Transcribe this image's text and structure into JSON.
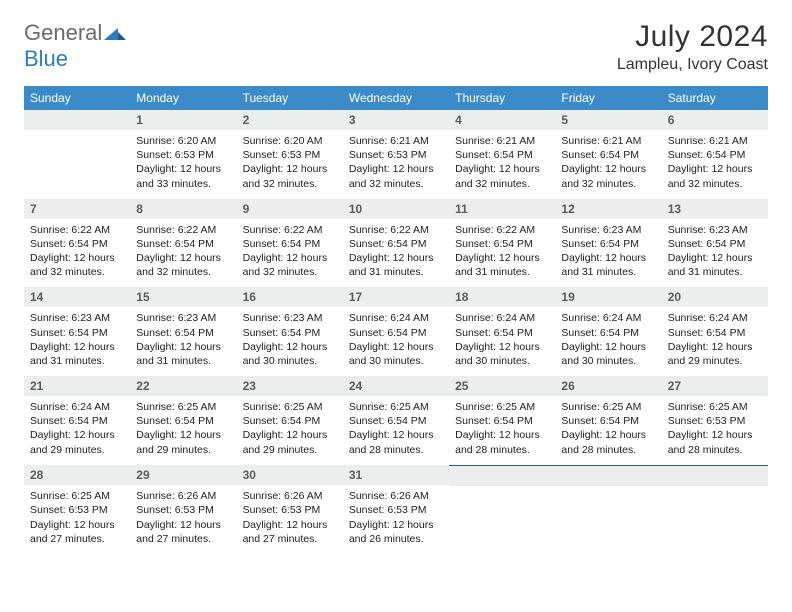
{
  "logo": {
    "text_general": "General",
    "text_blue": "Blue",
    "mark_color": "#2f7bbf"
  },
  "title": "July 2024",
  "location": "Lampleu, Ivory Coast",
  "header_bg": "#3b8bc9",
  "header_text_color": "#ffffff",
  "dayheader_bg": "#eceded",
  "border_color": "#2a5b8a",
  "weekdays": [
    "Sunday",
    "Monday",
    "Tuesday",
    "Wednesday",
    "Thursday",
    "Friday",
    "Saturday"
  ],
  "weeks": [
    [
      null,
      {
        "n": "1",
        "sunrise": "Sunrise: 6:20 AM",
        "sunset": "Sunset: 6:53 PM",
        "daylight": "Daylight: 12 hours and 33 minutes."
      },
      {
        "n": "2",
        "sunrise": "Sunrise: 6:20 AM",
        "sunset": "Sunset: 6:53 PM",
        "daylight": "Daylight: 12 hours and 32 minutes."
      },
      {
        "n": "3",
        "sunrise": "Sunrise: 6:21 AM",
        "sunset": "Sunset: 6:53 PM",
        "daylight": "Daylight: 12 hours and 32 minutes."
      },
      {
        "n": "4",
        "sunrise": "Sunrise: 6:21 AM",
        "sunset": "Sunset: 6:54 PM",
        "daylight": "Daylight: 12 hours and 32 minutes."
      },
      {
        "n": "5",
        "sunrise": "Sunrise: 6:21 AM",
        "sunset": "Sunset: 6:54 PM",
        "daylight": "Daylight: 12 hours and 32 minutes."
      },
      {
        "n": "6",
        "sunrise": "Sunrise: 6:21 AM",
        "sunset": "Sunset: 6:54 PM",
        "daylight": "Daylight: 12 hours and 32 minutes."
      }
    ],
    [
      {
        "n": "7",
        "sunrise": "Sunrise: 6:22 AM",
        "sunset": "Sunset: 6:54 PM",
        "daylight": "Daylight: 12 hours and 32 minutes."
      },
      {
        "n": "8",
        "sunrise": "Sunrise: 6:22 AM",
        "sunset": "Sunset: 6:54 PM",
        "daylight": "Daylight: 12 hours and 32 minutes."
      },
      {
        "n": "9",
        "sunrise": "Sunrise: 6:22 AM",
        "sunset": "Sunset: 6:54 PM",
        "daylight": "Daylight: 12 hours and 32 minutes."
      },
      {
        "n": "10",
        "sunrise": "Sunrise: 6:22 AM",
        "sunset": "Sunset: 6:54 PM",
        "daylight": "Daylight: 12 hours and 31 minutes."
      },
      {
        "n": "11",
        "sunrise": "Sunrise: 6:22 AM",
        "sunset": "Sunset: 6:54 PM",
        "daylight": "Daylight: 12 hours and 31 minutes."
      },
      {
        "n": "12",
        "sunrise": "Sunrise: 6:23 AM",
        "sunset": "Sunset: 6:54 PM",
        "daylight": "Daylight: 12 hours and 31 minutes."
      },
      {
        "n": "13",
        "sunrise": "Sunrise: 6:23 AM",
        "sunset": "Sunset: 6:54 PM",
        "daylight": "Daylight: 12 hours and 31 minutes."
      }
    ],
    [
      {
        "n": "14",
        "sunrise": "Sunrise: 6:23 AM",
        "sunset": "Sunset: 6:54 PM",
        "daylight": "Daylight: 12 hours and 31 minutes."
      },
      {
        "n": "15",
        "sunrise": "Sunrise: 6:23 AM",
        "sunset": "Sunset: 6:54 PM",
        "daylight": "Daylight: 12 hours and 31 minutes."
      },
      {
        "n": "16",
        "sunrise": "Sunrise: 6:23 AM",
        "sunset": "Sunset: 6:54 PM",
        "daylight": "Daylight: 12 hours and 30 minutes."
      },
      {
        "n": "17",
        "sunrise": "Sunrise: 6:24 AM",
        "sunset": "Sunset: 6:54 PM",
        "daylight": "Daylight: 12 hours and 30 minutes."
      },
      {
        "n": "18",
        "sunrise": "Sunrise: 6:24 AM",
        "sunset": "Sunset: 6:54 PM",
        "daylight": "Daylight: 12 hours and 30 minutes."
      },
      {
        "n": "19",
        "sunrise": "Sunrise: 6:24 AM",
        "sunset": "Sunset: 6:54 PM",
        "daylight": "Daylight: 12 hours and 30 minutes."
      },
      {
        "n": "20",
        "sunrise": "Sunrise: 6:24 AM",
        "sunset": "Sunset: 6:54 PM",
        "daylight": "Daylight: 12 hours and 29 minutes."
      }
    ],
    [
      {
        "n": "21",
        "sunrise": "Sunrise: 6:24 AM",
        "sunset": "Sunset: 6:54 PM",
        "daylight": "Daylight: 12 hours and 29 minutes."
      },
      {
        "n": "22",
        "sunrise": "Sunrise: 6:25 AM",
        "sunset": "Sunset: 6:54 PM",
        "daylight": "Daylight: 12 hours and 29 minutes."
      },
      {
        "n": "23",
        "sunrise": "Sunrise: 6:25 AM",
        "sunset": "Sunset: 6:54 PM",
        "daylight": "Daylight: 12 hours and 29 minutes."
      },
      {
        "n": "24",
        "sunrise": "Sunrise: 6:25 AM",
        "sunset": "Sunset: 6:54 PM",
        "daylight": "Daylight: 12 hours and 28 minutes."
      },
      {
        "n": "25",
        "sunrise": "Sunrise: 6:25 AM",
        "sunset": "Sunset: 6:54 PM",
        "daylight": "Daylight: 12 hours and 28 minutes."
      },
      {
        "n": "26",
        "sunrise": "Sunrise: 6:25 AM",
        "sunset": "Sunset: 6:54 PM",
        "daylight": "Daylight: 12 hours and 28 minutes."
      },
      {
        "n": "27",
        "sunrise": "Sunrise: 6:25 AM",
        "sunset": "Sunset: 6:53 PM",
        "daylight": "Daylight: 12 hours and 28 minutes."
      }
    ],
    [
      {
        "n": "28",
        "sunrise": "Sunrise: 6:25 AM",
        "sunset": "Sunset: 6:53 PM",
        "daylight": "Daylight: 12 hours and 27 minutes."
      },
      {
        "n": "29",
        "sunrise": "Sunrise: 6:26 AM",
        "sunset": "Sunset: 6:53 PM",
        "daylight": "Daylight: 12 hours and 27 minutes."
      },
      {
        "n": "30",
        "sunrise": "Sunrise: 6:26 AM",
        "sunset": "Sunset: 6:53 PM",
        "daylight": "Daylight: 12 hours and 27 minutes."
      },
      {
        "n": "31",
        "sunrise": "Sunrise: 6:26 AM",
        "sunset": "Sunset: 6:53 PM",
        "daylight": "Daylight: 12 hours and 26 minutes."
      },
      null,
      null,
      null
    ]
  ]
}
